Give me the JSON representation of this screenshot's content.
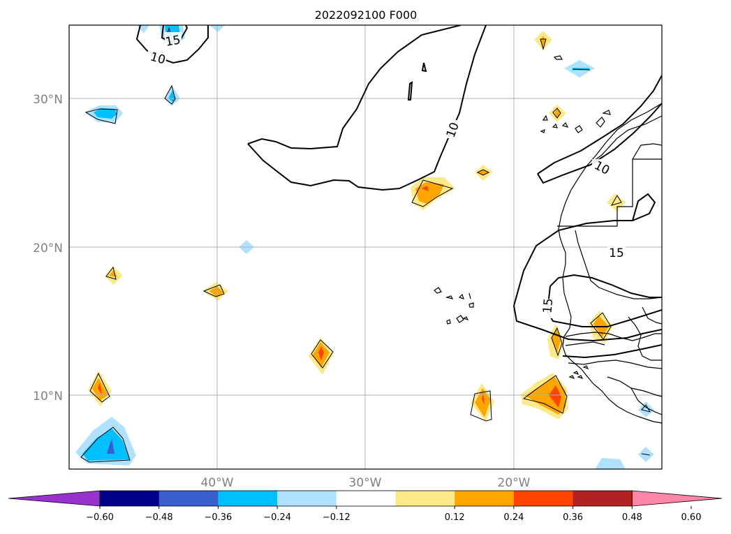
{
  "title": "2022092100 F000",
  "lat_labels": [
    "30°N",
    "20°N",
    "10°N"
  ],
  "lon_labels": [
    "40°W",
    "30°W",
    "20°W"
  ],
  "contour_labels": [
    "15",
    "10",
    "10",
    "10",
    "15",
    "15"
  ],
  "colorbar": {
    "ticks": [
      "−0.60",
      "−0.48",
      "−0.36",
      "−0.24",
      "−0.12",
      "0.12",
      "0.24",
      "0.36",
      "0.48",
      "0.60"
    ],
    "colors": [
      "#9932cc",
      "#00008b",
      "#3a5fcd",
      "#00bfff",
      "#b0e2ff",
      "#ffffff",
      "#fcea8a",
      "#ffa500",
      "#ff4500",
      "#b22222",
      "#ff86a6"
    ]
  },
  "colors": {
    "grid": "#b0b0b0",
    "tick_text": "#808080",
    "contour": "#000000"
  }
}
